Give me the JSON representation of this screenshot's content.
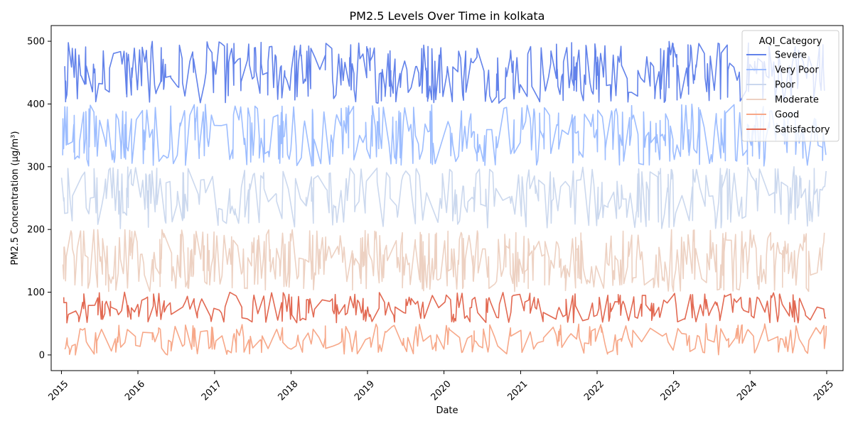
{
  "chart_data": {
    "type": "line",
    "title": "PM2.5 Levels Over Time in kolkata",
    "xlabel": "Date",
    "ylabel": "PM2.5 Concentration (µg/m³)",
    "x_range": [
      "2014-11-13",
      "2025-03-20"
    ],
    "ylim": [
      -25,
      525
    ],
    "x_ticks": [
      "2015",
      "2016",
      "2017",
      "2018",
      "2019",
      "2020",
      "2021",
      "2022",
      "2023",
      "2024",
      "2025"
    ],
    "y_ticks": [
      0,
      100,
      200,
      300,
      400,
      500
    ],
    "grid": false,
    "legend": {
      "title": "AQI_Category",
      "placement": "top-right"
    },
    "series": [
      {
        "name": "Severe",
        "color": "#6282ea",
        "range": [
          401,
          500
        ],
        "points": 500
      },
      {
        "name": "Very Poor",
        "color": "#9dbdff",
        "range": [
          301,
          400
        ],
        "points": 500
      },
      {
        "name": "Poor",
        "color": "#cbd8ee",
        "range": [
          201,
          300
        ],
        "points": 400
      },
      {
        "name": "Moderate",
        "color": "#edd1c2",
        "range": [
          101,
          200
        ],
        "points": 600
      },
      {
        "name": "Good",
        "color": "#f7a889",
        "range": [
          0,
          50
        ],
        "points": 300
      },
      {
        "name": "Satisfactory",
        "color": "#e26952",
        "range": [
          51,
          100
        ],
        "points": 350
      }
    ],
    "note_values": "Each series oscillates densely within its range; values are approximated from the figure."
  }
}
